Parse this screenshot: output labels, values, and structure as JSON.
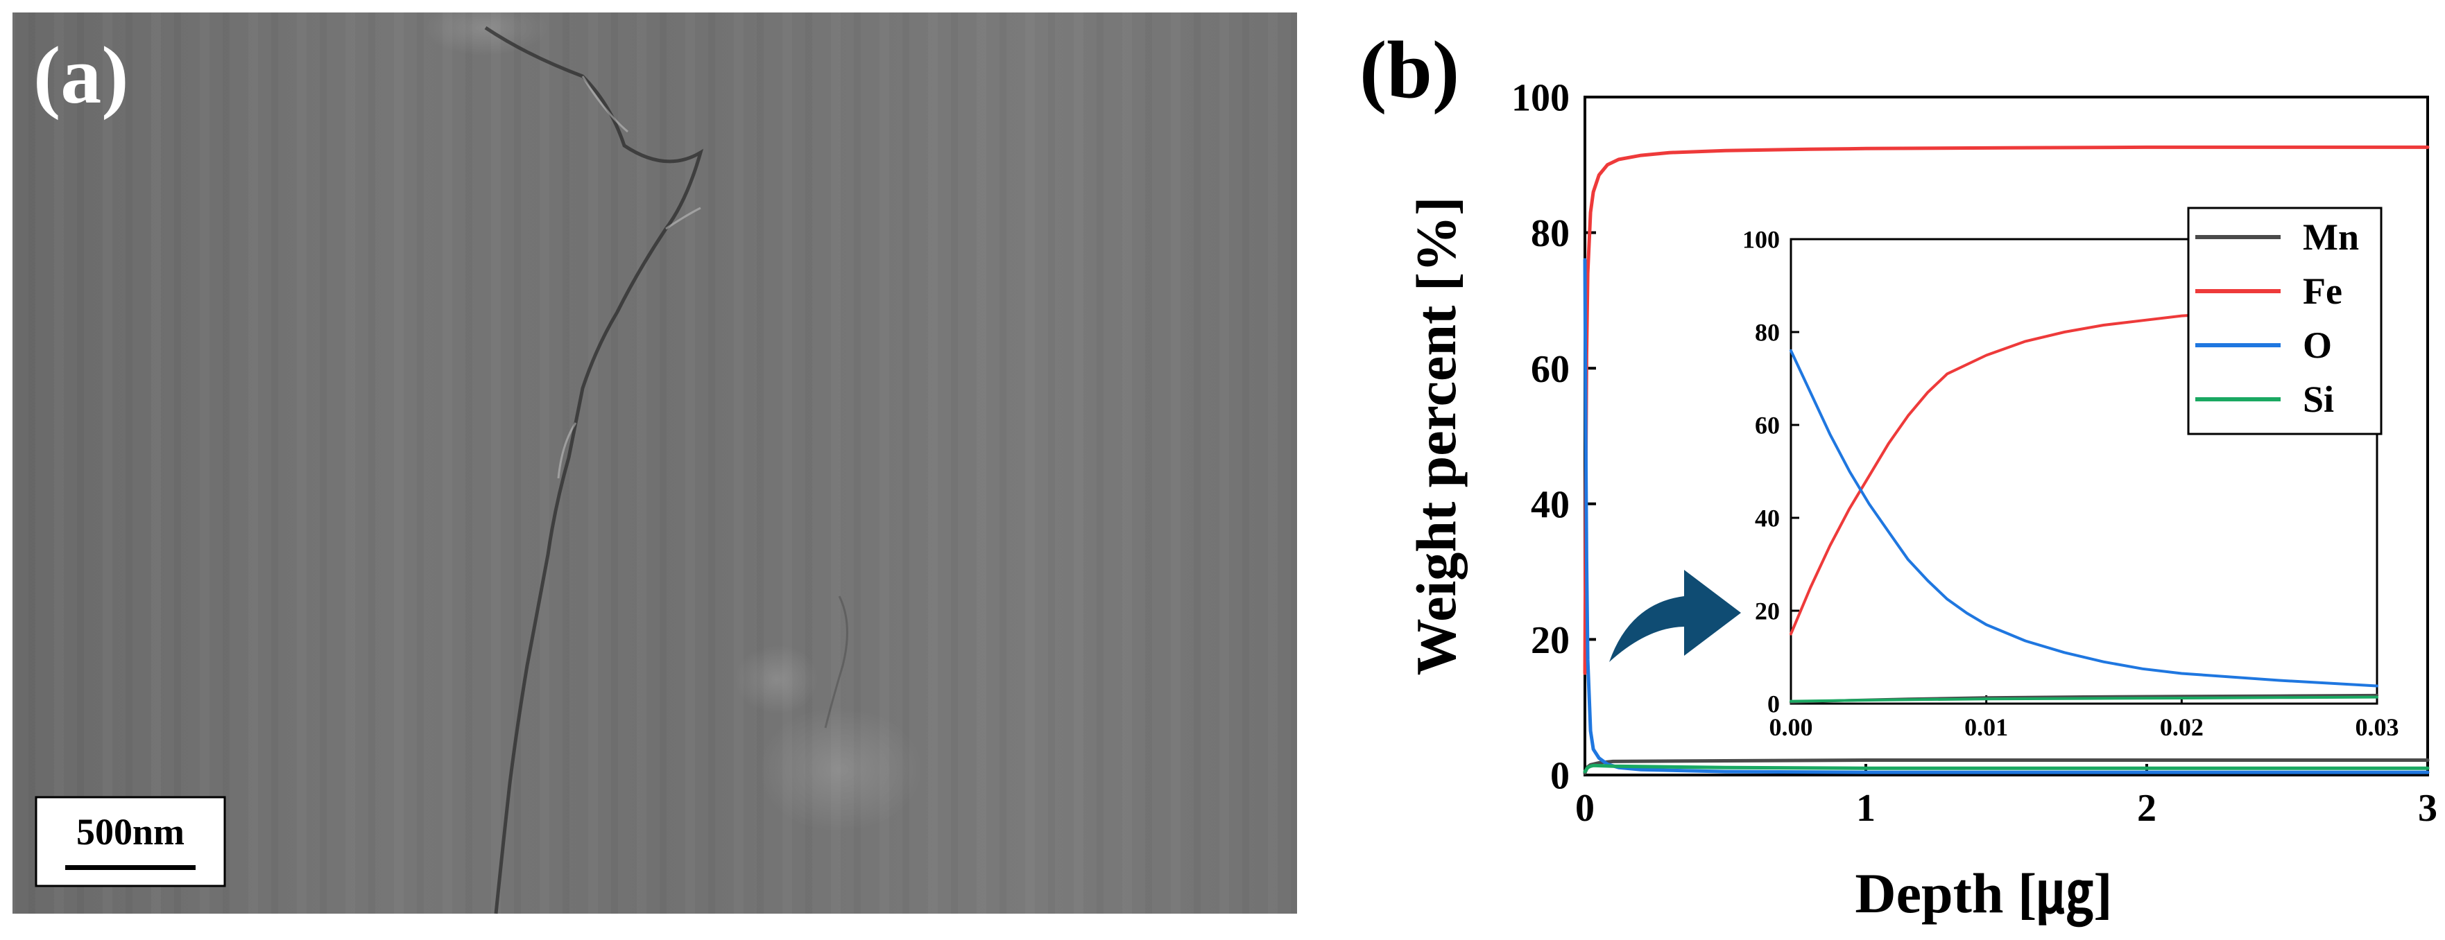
{
  "panel_a": {
    "label": "(a)",
    "scale_bar": "500nm"
  },
  "panel_b": {
    "label": "(b)"
  },
  "chart_data": [
    {
      "type": "line",
      "xlabel": "Depth [㎍]",
      "ylabel": "Weight percent [%]",
      "xlim": [
        0,
        3
      ],
      "ylim": [
        0,
        100
      ],
      "xticks": [
        "0",
        "1",
        "2",
        "3"
      ],
      "yticks": [
        "0",
        "20",
        "40",
        "60",
        "80",
        "100"
      ],
      "grid": false,
      "series": [
        {
          "name": "Mn",
          "color": "#4a4a4a",
          "x": [
            0,
            0.005,
            0.01,
            0.02,
            0.05,
            0.1,
            0.5,
            1,
            2,
            3
          ],
          "y": [
            0.3,
            0.8,
            1.2,
            1.5,
            1.8,
            2.0,
            2.1,
            2.2,
            2.2,
            2.2
          ]
        },
        {
          "name": "Fe",
          "color": "#ee3a3a",
          "x": [
            0,
            0.003,
            0.006,
            0.01,
            0.02,
            0.03,
            0.05,
            0.08,
            0.12,
            0.2,
            0.3,
            0.5,
            0.8,
            1.0,
            1.5,
            2.0,
            2.5,
            3.0
          ],
          "y": [
            15,
            43,
            62,
            74,
            83,
            86,
            88.5,
            90,
            90.8,
            91.4,
            91.8,
            92.1,
            92.3,
            92.4,
            92.5,
            92.6,
            92.6,
            92.6
          ]
        },
        {
          "name": "O",
          "color": "#1f77e0",
          "x": [
            0,
            0.003,
            0.006,
            0.01,
            0.02,
            0.03,
            0.05,
            0.08,
            0.12,
            0.2,
            0.5,
            1,
            2,
            3
          ],
          "y": [
            76,
            50,
            32,
            17,
            6.5,
            3.8,
            2.5,
            1.6,
            1.1,
            0.8,
            0.5,
            0.4,
            0.4,
            0.4
          ]
        },
        {
          "name": "Si",
          "color": "#1aa862",
          "x": [
            0,
            0.01,
            0.02,
            0.03,
            0.1,
            0.5,
            1,
            2,
            3
          ],
          "y": [
            0.5,
            1.1,
            1.3,
            1.4,
            1.3,
            1.1,
            1.0,
            1.0,
            1.0
          ]
        }
      ],
      "legend": {
        "placement": "inside-right",
        "entries": [
          "Mn",
          "Fe",
          "O",
          "Si"
        ]
      }
    },
    {
      "type": "line",
      "inset": true,
      "xlim": [
        0,
        0.03
      ],
      "ylim": [
        0,
        100
      ],
      "xticks": [
        "0.00",
        "0.01",
        "0.02",
        "0.03"
      ],
      "yticks": [
        "0",
        "20",
        "40",
        "60",
        "80",
        "100"
      ],
      "grid": false,
      "series": [
        {
          "name": "Mn",
          "color": "#4a4a4a",
          "x": [
            0,
            0.003,
            0.006,
            0.01,
            0.015,
            0.02,
            0.025,
            0.03
          ],
          "y": [
            0.3,
            0.7,
            1.0,
            1.3,
            1.5,
            1.6,
            1.7,
            1.8
          ]
        },
        {
          "name": "Fe",
          "color": "#ee3a3a",
          "x": [
            0,
            0.001,
            0.002,
            0.003,
            0.004,
            0.005,
            0.006,
            0.007,
            0.008,
            0.01,
            0.012,
            0.014,
            0.016,
            0.018,
            0.02,
            0.022
          ],
          "y": [
            15,
            25,
            34,
            42,
            49,
            56,
            62,
            67,
            71,
            75,
            78,
            80,
            81.5,
            82.5,
            83.5,
            84
          ]
        },
        {
          "name": "O",
          "color": "#1f77e0",
          "x": [
            0,
            0.001,
            0.002,
            0.003,
            0.004,
            0.005,
            0.006,
            0.007,
            0.008,
            0.009,
            0.01,
            0.012,
            0.014,
            0.016,
            0.018,
            0.02,
            0.025,
            0.03
          ],
          "y": [
            76,
            67,
            58,
            50,
            43,
            37,
            31,
            26.5,
            22.5,
            19.5,
            17,
            13.5,
            11,
            9,
            7.5,
            6.5,
            5,
            3.8
          ]
        },
        {
          "name": "Si",
          "color": "#1aa862",
          "x": [
            0,
            0.005,
            0.01,
            0.015,
            0.02,
            0.025,
            0.03
          ],
          "y": [
            0.5,
            0.8,
            1.0,
            1.1,
            1.2,
            1.3,
            1.4
          ]
        }
      ]
    }
  ]
}
